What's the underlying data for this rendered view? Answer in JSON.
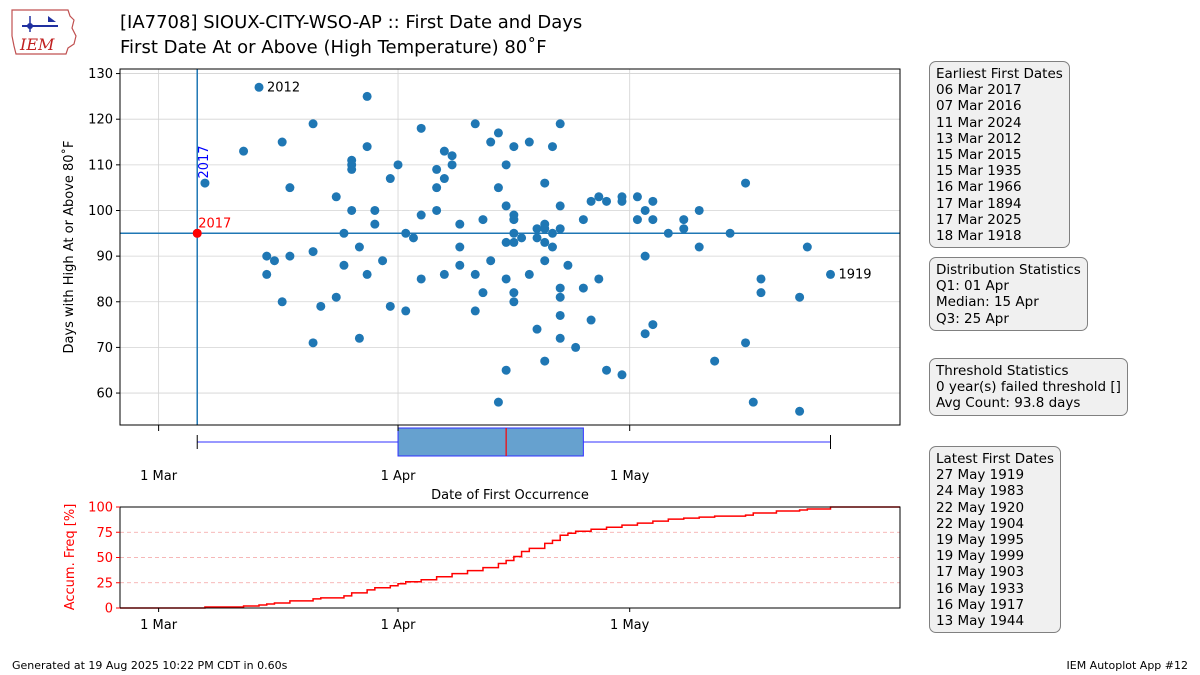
{
  "header": {
    "logo_text": "IEM",
    "title_line1": "[IA7708] SIOUX-CITY-WSO-AP :: First Date and Days",
    "title_line2": "First Date At or Above (High Temperature) 80˚F"
  },
  "colors": {
    "points": "#1f77b4",
    "highlight": "#ff0000",
    "year_label": "#0000ff",
    "box_fill": "#66a1cf",
    "median": "#ff0000",
    "cdf": "#ff0000"
  },
  "chart_data": [
    {
      "type": "scatter",
      "xlabel": "Date of First Occurrence",
      "ylabel": "Days with High At or Above 80˚F",
      "x_unit": "day of year",
      "x_ticks": [
        {
          "value": 60,
          "label": "1 Mar"
        },
        {
          "value": 91,
          "label": "1 Apr"
        },
        {
          "value": 121,
          "label": "1 May"
        }
      ],
      "y_ticks": [
        60,
        70,
        80,
        90,
        100,
        110,
        120,
        130
      ],
      "xlim": [
        55,
        156
      ],
      "ylim": [
        53,
        131
      ],
      "grid": true,
      "highlight": {
        "year": "2017",
        "x": 65,
        "y": 95
      },
      "reference_lines": {
        "vertical_label": "2017",
        "vertical_x": 65,
        "horizontal_y": 95
      },
      "annotations": [
        {
          "text": "2012",
          "x": 73,
          "y": 127
        },
        {
          "text": "1919",
          "x": 147,
          "y": 86
        }
      ],
      "points": [
        [
          65,
          95
        ],
        [
          66,
          106
        ],
        [
          71,
          113
        ],
        [
          73,
          127
        ],
        [
          74,
          90
        ],
        [
          74,
          86
        ],
        [
          75,
          89
        ],
        [
          76,
          115
        ],
        [
          76,
          80
        ],
        [
          77,
          105
        ],
        [
          77,
          90
        ],
        [
          80,
          119
        ],
        [
          80,
          91
        ],
        [
          80,
          71
        ],
        [
          81,
          79
        ],
        [
          83,
          103
        ],
        [
          83,
          81
        ],
        [
          84,
          95
        ],
        [
          84,
          88
        ],
        [
          85,
          111
        ],
        [
          85,
          110
        ],
        [
          85,
          109
        ],
        [
          85,
          100
        ],
        [
          86,
          92
        ],
        [
          86,
          72
        ],
        [
          87,
          125
        ],
        [
          87,
          114
        ],
        [
          87,
          86
        ],
        [
          88,
          100
        ],
        [
          88,
          97
        ],
        [
          89,
          89
        ],
        [
          90,
          107
        ],
        [
          90,
          79
        ],
        [
          91,
          110
        ],
        [
          92,
          95
        ],
        [
          92,
          78
        ],
        [
          93,
          94
        ],
        [
          94,
          118
        ],
        [
          94,
          99
        ],
        [
          94,
          85
        ],
        [
          96,
          109
        ],
        [
          96,
          105
        ],
        [
          96,
          100
        ],
        [
          97,
          113
        ],
        [
          97,
          107
        ],
        [
          97,
          86
        ],
        [
          98,
          112
        ],
        [
          98,
          110
        ],
        [
          99,
          97
        ],
        [
          99,
          92
        ],
        [
          99,
          88
        ],
        [
          101,
          119
        ],
        [
          101,
          86
        ],
        [
          101,
          78
        ],
        [
          102,
          98
        ],
        [
          102,
          82
        ],
        [
          103,
          115
        ],
        [
          103,
          89
        ],
        [
          104,
          117
        ],
        [
          104,
          105
        ],
        [
          104,
          58
        ],
        [
          105,
          110
        ],
        [
          105,
          101
        ],
        [
          105,
          93
        ],
        [
          105,
          85
        ],
        [
          105,
          65
        ],
        [
          106,
          99
        ],
        [
          106,
          98
        ],
        [
          106,
          95
        ],
        [
          106,
          93
        ],
        [
          106,
          80
        ],
        [
          106,
          82
        ],
        [
          106,
          114
        ],
        [
          107,
          94
        ],
        [
          108,
          115
        ],
        [
          108,
          86
        ],
        [
          109,
          96
        ],
        [
          109,
          94
        ],
        [
          109,
          74
        ],
        [
          110,
          106
        ],
        [
          110,
          97
        ],
        [
          110,
          96
        ],
        [
          110,
          93
        ],
        [
          110,
          89
        ],
        [
          110,
          67
        ],
        [
          111,
          114
        ],
        [
          111,
          95
        ],
        [
          111,
          92
        ],
        [
          112,
          119
        ],
        [
          112,
          101
        ],
        [
          112,
          96
        ],
        [
          112,
          83
        ],
        [
          112,
          81
        ],
        [
          112,
          77
        ],
        [
          112,
          72
        ],
        [
          113,
          88
        ],
        [
          114,
          70
        ],
        [
          115,
          98
        ],
        [
          115,
          83
        ],
        [
          116,
          102
        ],
        [
          116,
          76
        ],
        [
          117,
          103
        ],
        [
          117,
          85
        ],
        [
          118,
          102
        ],
        [
          118,
          65
        ],
        [
          120,
          103
        ],
        [
          120,
          102
        ],
        [
          120,
          64
        ],
        [
          122,
          103
        ],
        [
          122,
          98
        ],
        [
          123,
          100
        ],
        [
          123,
          90
        ],
        [
          123,
          73
        ],
        [
          124,
          102
        ],
        [
          124,
          98
        ],
        [
          124,
          75
        ],
        [
          126,
          95
        ],
        [
          128,
          98
        ],
        [
          128,
          96
        ],
        [
          130,
          100
        ],
        [
          130,
          92
        ],
        [
          132,
          67
        ],
        [
          134,
          95
        ],
        [
          136,
          106
        ],
        [
          136,
          71
        ],
        [
          137,
          58
        ],
        [
          138,
          85
        ],
        [
          138,
          82
        ],
        [
          143,
          81
        ],
        [
          143,
          56
        ],
        [
          144,
          92
        ],
        [
          147,
          86
        ]
      ]
    },
    {
      "type": "box",
      "orientation": "horizontal",
      "whisker_low": 65,
      "q1": 91,
      "median": 105,
      "q3": 115,
      "whisker_high": 147
    },
    {
      "type": "line",
      "ylabel": "Accum. Freq [%]",
      "y_ticks": [
        0,
        25,
        50,
        75,
        100
      ],
      "ylim": [
        0,
        100
      ],
      "x_ticks": [
        {
          "value": 60,
          "label": "1 Mar"
        },
        {
          "value": 91,
          "label": "1 Apr"
        },
        {
          "value": 121,
          "label": "1 May"
        }
      ],
      "xlim": [
        55,
        156
      ],
      "step": true,
      "x": [
        55,
        65,
        66,
        71,
        73,
        74,
        75,
        77,
        80,
        81,
        84,
        85,
        87,
        88,
        90,
        91,
        92,
        94,
        96,
        98,
        100,
        102,
        104,
        105,
        106,
        107,
        108,
        110,
        111,
        112,
        113,
        114,
        116,
        118,
        120,
        122,
        124,
        126,
        128,
        130,
        132,
        136,
        137,
        140,
        143,
        144,
        147,
        156
      ],
      "y": [
        0,
        0,
        1,
        2,
        3,
        4,
        5,
        7,
        9,
        10,
        12,
        15,
        18,
        20,
        22,
        24,
        26,
        28,
        31,
        34,
        37,
        40,
        44,
        47,
        51,
        56,
        59,
        64,
        67,
        72,
        74,
        76,
        78,
        80,
        82,
        84,
        86,
        88,
        89,
        90,
        91,
        92,
        94,
        96,
        97,
        98,
        100,
        100
      ]
    }
  ],
  "boxes": {
    "earliest": {
      "heading": "Earliest First Dates",
      "items": [
        "06 Mar 2017",
        "07 Mar 2016",
        "11 Mar 2024",
        "13 Mar 2012",
        "15 Mar 2015",
        "15 Mar 1935",
        "16 Mar 1966",
        "17 Mar 1894",
        "17 Mar 2025",
        "18 Mar 1918"
      ]
    },
    "distribution": {
      "heading": "Distribution Statistics",
      "items": [
        "Q1: 01 Apr",
        "Median: 15 Apr",
        "Q3: 25 Apr"
      ]
    },
    "threshold": {
      "heading": "Threshold Statistics",
      "items": [
        "0 year(s) failed threshold []",
        "Avg Count: 93.8 days"
      ]
    },
    "latest": {
      "heading": "Latest First Dates",
      "items": [
        "27 May 1919",
        "24 May 1983",
        "22 May 1920",
        "22 May 1904",
        "19 May 1995",
        "19 May 1999",
        "17 May 1903",
        "16 May 1933",
        "16 May 1917",
        "13 May 1944"
      ]
    }
  },
  "footer": {
    "generated": "Generated at 19 Aug 2025 10:22 PM CDT in 0.60s",
    "app": "IEM Autoplot App #12"
  }
}
